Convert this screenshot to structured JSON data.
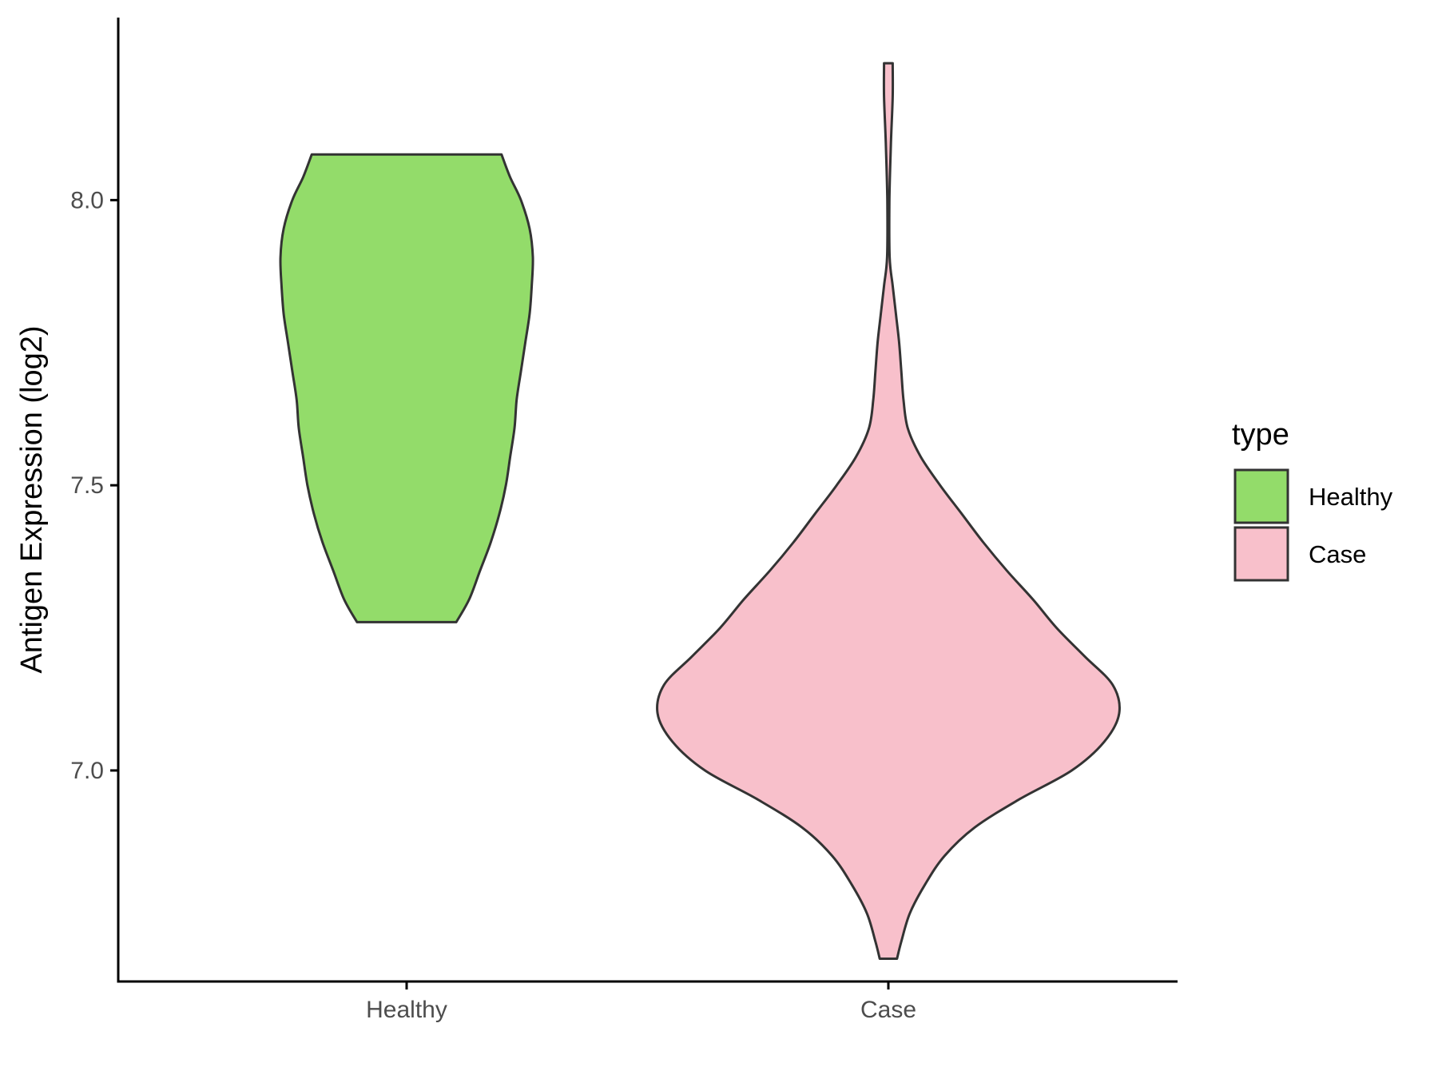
{
  "chart_data": {
    "type": "violin",
    "categories": [
      "Healthy",
      "Case"
    ],
    "ylabel": "Antigen Expression (log2)",
    "xlabel": "",
    "ylim": [
      6.63,
      8.32
    ],
    "yticks": [
      7.0,
      7.5,
      8.0
    ],
    "ytick_labels": [
      "7.0",
      "7.5",
      "8.0"
    ],
    "grid": false,
    "legend": {
      "title": "type",
      "position": "right",
      "entries": [
        {
          "label": "Healthy",
          "color": "#93dc6a"
        },
        {
          "label": "Case",
          "color": "#f8c0cb"
        }
      ]
    },
    "series": [
      {
        "name": "Healthy",
        "color": "#93dc6a",
        "min": 7.26,
        "max": 8.08,
        "profile": [
          {
            "y": 7.26,
            "w": 0.23
          },
          {
            "y": 7.3,
            "w": 0.29
          },
          {
            "y": 7.35,
            "w": 0.34
          },
          {
            "y": 7.4,
            "w": 0.39
          },
          {
            "y": 7.45,
            "w": 0.43
          },
          {
            "y": 7.5,
            "w": 0.46
          },
          {
            "y": 7.55,
            "w": 0.48
          },
          {
            "y": 7.6,
            "w": 0.5
          },
          {
            "y": 7.65,
            "w": 0.51
          },
          {
            "y": 7.7,
            "w": 0.53
          },
          {
            "y": 7.75,
            "w": 0.55
          },
          {
            "y": 7.8,
            "w": 0.57
          },
          {
            "y": 7.85,
            "w": 0.58
          },
          {
            "y": 7.9,
            "w": 0.585
          },
          {
            "y": 7.95,
            "w": 0.57
          },
          {
            "y": 8.0,
            "w": 0.53
          },
          {
            "y": 8.04,
            "w": 0.48
          },
          {
            "y": 8.08,
            "w": 0.44
          }
        ]
      },
      {
        "name": "Case",
        "color": "#f8c0cb",
        "min": 6.67,
        "max": 8.24,
        "profile": [
          {
            "y": 6.67,
            "w": 0.04
          },
          {
            "y": 6.7,
            "w": 0.06
          },
          {
            "y": 6.75,
            "w": 0.1
          },
          {
            "y": 6.8,
            "w": 0.17
          },
          {
            "y": 6.85,
            "w": 0.26
          },
          {
            "y": 6.9,
            "w": 0.4
          },
          {
            "y": 6.95,
            "w": 0.61
          },
          {
            "y": 7.0,
            "w": 0.85
          },
          {
            "y": 7.05,
            "w": 1.0
          },
          {
            "y": 7.1,
            "w": 1.07
          },
          {
            "y": 7.15,
            "w": 1.04
          },
          {
            "y": 7.2,
            "w": 0.91
          },
          {
            "y": 7.25,
            "w": 0.78
          },
          {
            "y": 7.3,
            "w": 0.67
          },
          {
            "y": 7.35,
            "w": 0.55
          },
          {
            "y": 7.4,
            "w": 0.44
          },
          {
            "y": 7.45,
            "w": 0.34
          },
          {
            "y": 7.5,
            "w": 0.24
          },
          {
            "y": 7.55,
            "w": 0.15
          },
          {
            "y": 7.6,
            "w": 0.09
          },
          {
            "y": 7.65,
            "w": 0.07
          },
          {
            "y": 7.7,
            "w": 0.06
          },
          {
            "y": 7.75,
            "w": 0.05
          },
          {
            "y": 7.8,
            "w": 0.035
          },
          {
            "y": 7.85,
            "w": 0.02
          },
          {
            "y": 7.9,
            "w": 0.006
          },
          {
            "y": 8.0,
            "w": 0.005
          },
          {
            "y": 8.1,
            "w": 0.012
          },
          {
            "y": 8.18,
            "w": 0.02
          },
          {
            "y": 8.24,
            "w": 0.02
          }
        ]
      }
    ]
  }
}
